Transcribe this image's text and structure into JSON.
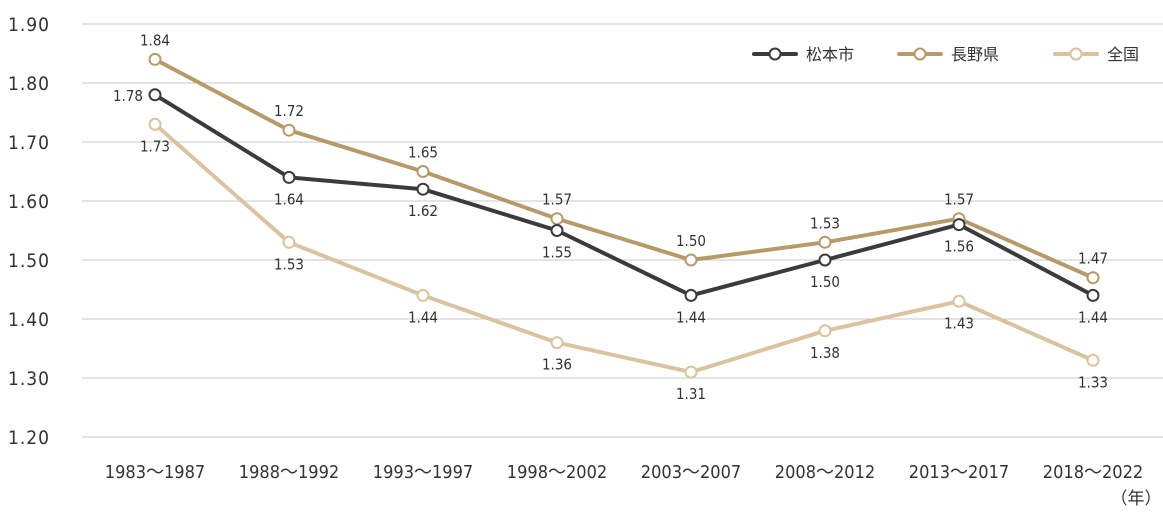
{
  "chart_data": {
    "type": "line",
    "title": "",
    "xlabel": "",
    "ylabel": "",
    "x_unit": "（年）",
    "categories": [
      "1983～1987",
      "1988～1992",
      "1993～1997",
      "1998～2002",
      "2003～2007",
      "2008～2012",
      "2013～2017",
      "2018～2022"
    ],
    "ylim": [
      1.2,
      1.9
    ],
    "y_ticks": [
      "1.20",
      "1.30",
      "1.40",
      "1.50",
      "1.60",
      "1.70",
      "1.80",
      "1.90"
    ],
    "grid": true,
    "legend_position": "top-right",
    "series": [
      {
        "name": "松本市",
        "color": "#3b3b3b",
        "values": [
          1.78,
          1.64,
          1.62,
          1.55,
          1.44,
          1.5,
          1.56,
          1.44
        ],
        "labels": [
          "1.78",
          "1.64",
          "1.62",
          "1.55",
          "1.44",
          "1.50",
          "1.56",
          "1.44"
        ],
        "label_positions": [
          "left",
          "below",
          "below",
          "below",
          "below",
          "below",
          "below",
          "below"
        ]
      },
      {
        "name": "長野県",
        "color": "#b89a6a",
        "values": [
          1.84,
          1.72,
          1.65,
          1.57,
          1.5,
          1.53,
          1.57,
          1.47
        ],
        "labels": [
          "1.84",
          "1.72",
          "1.65",
          "1.57",
          "1.50",
          "1.53",
          "1.57",
          "1.47"
        ],
        "label_positions": [
          "above",
          "above",
          "above",
          "above",
          "above",
          "above",
          "above",
          "above"
        ]
      },
      {
        "name": "全国",
        "color": "#d9c3a0",
        "values": [
          1.73,
          1.53,
          1.44,
          1.36,
          1.31,
          1.38,
          1.43,
          1.33
        ],
        "labels": [
          "1.73",
          "1.53",
          "1.44",
          "1.36",
          "1.31",
          "1.38",
          "1.43",
          "1.33"
        ],
        "label_positions": [
          "below",
          "below",
          "below",
          "below",
          "below",
          "below",
          "below",
          "below"
        ]
      }
    ]
  }
}
